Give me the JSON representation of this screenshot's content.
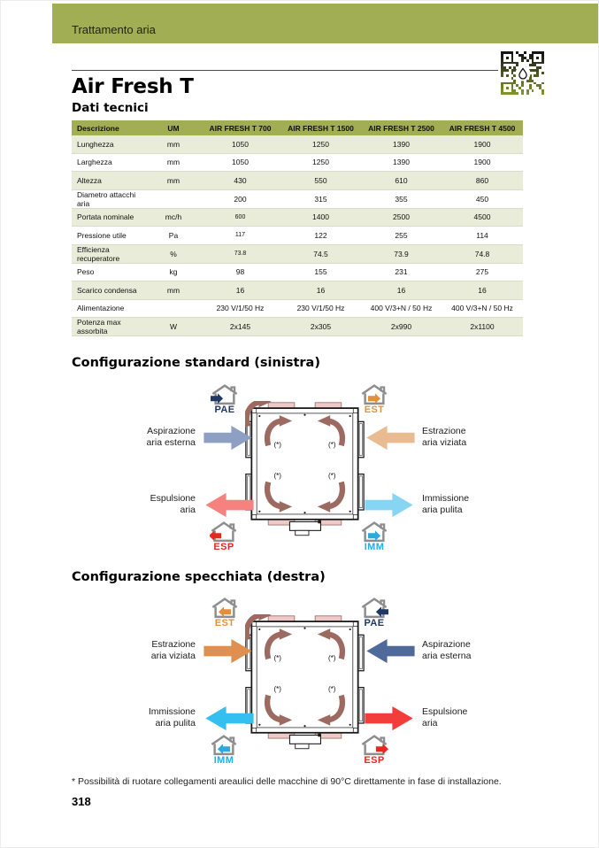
{
  "header": {
    "band_label": "Trattamento aria"
  },
  "title": "Air Fresh T",
  "sections": {
    "table_title": "Dati tecnici",
    "diagram1_title": "Configurazione standard (sinistra)",
    "diagram2_title": "Configurazione specchiata (destra)"
  },
  "table": {
    "headers": [
      "Descrizione",
      "UM",
      "AIR FRESH T 700",
      "AIR FRESH T 1500",
      "AIR FRESH T 2500",
      "AIR FRESH T 4500"
    ],
    "rows": [
      {
        "desc": "Lunghezza",
        "um": "mm",
        "values": [
          "1050",
          "1250",
          "1390",
          "1900"
        ]
      },
      {
        "desc": "Larghezza",
        "um": "mm",
        "values": [
          "1050",
          "1250",
          "1390",
          "1900"
        ]
      },
      {
        "desc": "Altezza",
        "um": "mm",
        "values": [
          "430",
          "550",
          "610",
          "860"
        ]
      },
      {
        "desc": "Diametro attacchi aria",
        "um": "",
        "values": [
          "200",
          "315",
          "355",
          "450"
        ]
      },
      {
        "desc": "Portata nominale",
        "um": "mc/h",
        "values": [
          "600",
          "1400",
          "2500",
          "4500"
        ]
      },
      {
        "desc": "Pressione utile",
        "um": "Pa",
        "values": [
          "117",
          "122",
          "255",
          "114"
        ]
      },
      {
        "desc": "Efficienza recuperatore",
        "um": "%",
        "values": [
          "73.8",
          "74.5",
          "73.9",
          "74.8"
        ]
      },
      {
        "desc": "Peso",
        "um": "kg",
        "values": [
          "98",
          "155",
          "231",
          "275"
        ]
      },
      {
        "desc": "Scarico condensa",
        "um": "mm",
        "values": [
          "16",
          "16",
          "16",
          "16"
        ]
      },
      {
        "desc": "Alimentazione",
        "um": "",
        "values": [
          "230 V/1/50 Hz",
          "230 V/1/50 Hz",
          "400 V/3+N / 50 Hz",
          "400 V/3+N / 50 Hz"
        ]
      },
      {
        "desc": "Potenza max assorbita",
        "um": "W",
        "values": [
          "2x145",
          "2x305",
          "2x990",
          "2x1100"
        ]
      }
    ]
  },
  "machine": {
    "asterisk": "(*)"
  },
  "diagram1": {
    "houses": {
      "top_left": "PAE",
      "top_right": "EST",
      "bottom_left": "ESP",
      "bottom_right": "IMM"
    },
    "arrows": {
      "top_left": {
        "line1": "Aspirazione",
        "line2": "aria esterna"
      },
      "top_right": {
        "line1": "Estrazione",
        "line2": "aria viziata"
      },
      "bottom_left": {
        "line1": "Espulsione",
        "line2": "aria"
      },
      "bottom_right": {
        "line1": "Immissione",
        "line2": "aria pulita"
      }
    }
  },
  "diagram2": {
    "houses": {
      "top_left": "EST",
      "top_right": "PAE",
      "bottom_left": "IMM",
      "bottom_right": "ESP"
    },
    "arrows": {
      "top_left": {
        "line1": "Estrazione",
        "line2": "aria viziata"
      },
      "top_right": {
        "line1": "Aspirazione",
        "line2": "aria esterna"
      },
      "bottom_left": {
        "line1": "Immissione",
        "line2": "aria pulita"
      },
      "bottom_right": {
        "line1": "Espulsione",
        "line2": "aria"
      }
    }
  },
  "footnote": "* Possibilità di ruotare collegamenti areaulici delle macchine di 90°C direttamente in fase di installazione.",
  "page_number": "318",
  "colors": {
    "olive_band": "#a1ae54",
    "table_row_shade": "#e9ecd8",
    "arrow_aspirazione_std": "#8d9fc2",
    "arrow_estrazione_std": "#e9bb90",
    "arrow_espulsione_std": "#f5827e",
    "arrow_immissione_std": "#85d5f3",
    "arrow_estrazione_mir": "#df9050",
    "arrow_aspirazione_mir": "#50699b",
    "arrow_immissione_mir": "#33bfef",
    "arrow_espulsione_mir": "#f23d3a",
    "house_pae": "#1f3864",
    "house_est": "#e0913f",
    "house_esp": "#e8281e",
    "house_imm": "#29abe2",
    "curved_arrow": "#9c6a60"
  }
}
